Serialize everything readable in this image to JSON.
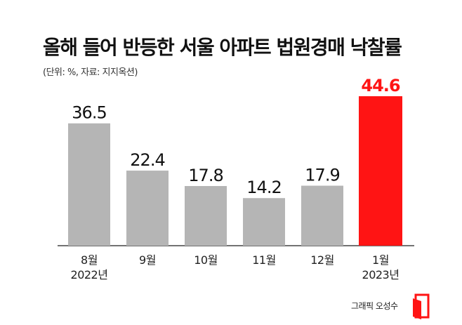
{
  "title": "올해 들어 반등한 서울 아파트 법원경매 낙찰률",
  "subtitle": "(단위: %, 자료: 지지옥션)",
  "credit": "그래픽 오성수",
  "colors": {
    "bar": "#b5b5b5",
    "highlight": "#ff1414",
    "value_text": "#111111",
    "highlight_text": "#ff1414",
    "axis": "#444444"
  },
  "chart_data": {
    "type": "bar",
    "categories": [
      [
        "8월",
        "2022년"
      ],
      [
        "9월"
      ],
      [
        "10월"
      ],
      [
        "11월"
      ],
      [
        "12월"
      ],
      [
        "1월",
        "2023년"
      ]
    ],
    "values": [
      36.5,
      22.4,
      17.8,
      14.2,
      17.9,
      44.6
    ],
    "value_labels": [
      "36.5",
      "22.4",
      "17.8",
      "14.2",
      "17.9",
      "44.6"
    ],
    "highlight_index": 5,
    "unit": "%",
    "ylim": [
      0,
      46.5
    ],
    "grid": false,
    "legend": "none",
    "title": "올해 들어 반등한 서울 아파트 법원경매 낙찰률",
    "xlabel": "",
    "ylabel": ""
  }
}
